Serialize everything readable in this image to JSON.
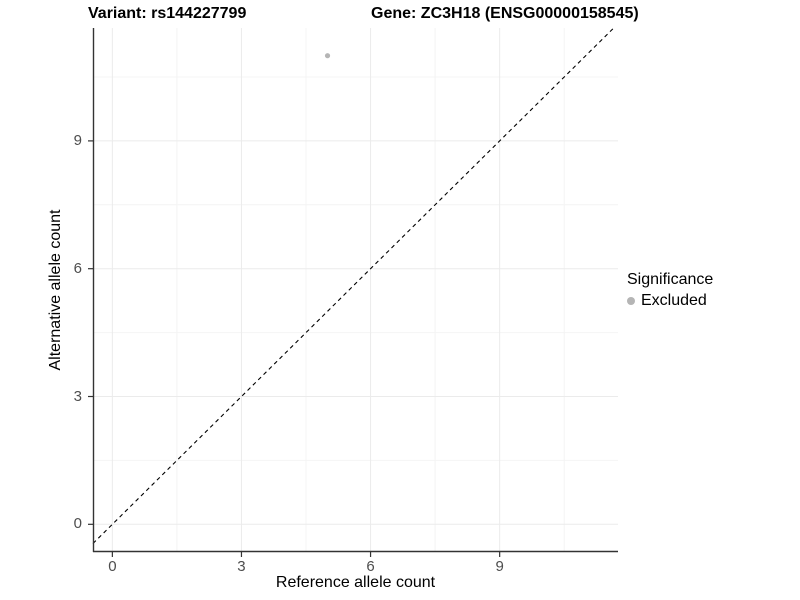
{
  "title": {
    "variant": "Variant: rs144227799",
    "gene": "Gene: ZC3H18 (ENSG00000158545)"
  },
  "axes": {
    "x_label": "Reference allele count",
    "y_label": "Alternative allele count"
  },
  "legend": {
    "title": "Significance",
    "items": [
      {
        "label": "Excluded",
        "color": "#b5b5b5"
      }
    ]
  },
  "chart_data": {
    "type": "scatter",
    "title": "Variant: rs144227799 | Gene: ZC3H18 (ENSG00000158545)",
    "xlabel": "Reference allele count",
    "ylabel": "Alternative allele count",
    "series": [
      {
        "name": "Excluded",
        "color": "#b5b5b5",
        "points": [
          [
            5,
            11
          ]
        ]
      }
    ],
    "x_ticks": [
      0,
      3,
      6,
      9
    ],
    "y_ticks": [
      0,
      3,
      6,
      9
    ],
    "x_minor_ticks": [
      1.5,
      4.5,
      7.5,
      10.5
    ],
    "y_minor_ticks": [
      1.5,
      4.5,
      7.5,
      10.5
    ],
    "xlim": [
      -0.45,
      11.75
    ],
    "ylim": [
      -0.65,
      11.65
    ],
    "identity_line": {
      "equation": "y = x",
      "style": "dashed",
      "color": "#000000"
    },
    "grid": true,
    "legend_position": "right",
    "point_radius": 2.6,
    "colors": {
      "axis_line": "#333333",
      "tick_mark": "#333333",
      "tick_label": "#4d4d4d",
      "grid_major": "#ebebeb",
      "grid_minor": "#f4f4f4",
      "background": "#ffffff"
    }
  }
}
